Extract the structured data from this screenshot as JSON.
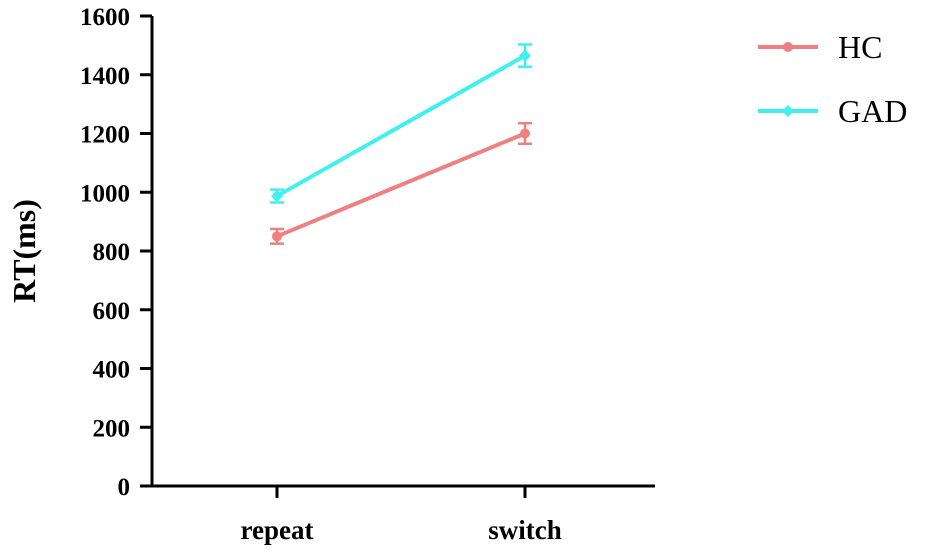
{
  "chart_data": {
    "type": "line",
    "categories": [
      "repeat",
      "switch"
    ],
    "ylabel": "RT(ms)",
    "xlabel": "",
    "ylim": [
      0,
      1600
    ],
    "yticks": [
      0,
      200,
      400,
      600,
      800,
      1000,
      1200,
      1400,
      1600
    ],
    "legend_position": "top-right",
    "grid": false,
    "series": [
      {
        "name": "HC",
        "color": "#F08080",
        "marker": "circle",
        "values": [
          850,
          1200
        ],
        "errors": [
          25,
          35
        ]
      },
      {
        "name": "GAD",
        "color": "#3EF0F0",
        "marker": "diamond",
        "values": [
          987,
          1465
        ],
        "errors": [
          22,
          38
        ]
      }
    ]
  }
}
